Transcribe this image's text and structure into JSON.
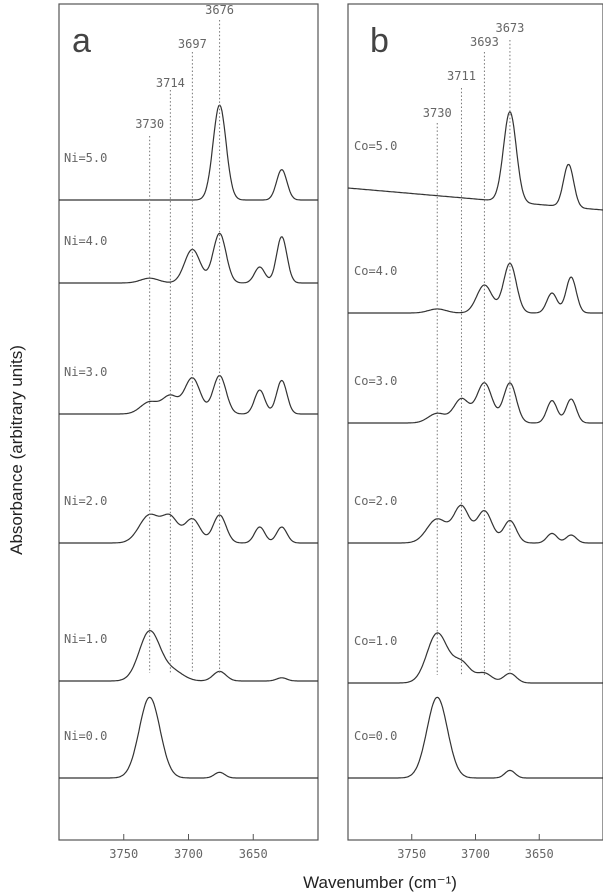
{
  "chart_data": [
    {
      "type": "line",
      "panel_label": "a",
      "xlim": [
        3800,
        3600
      ],
      "xticks": [
        3750,
        3700,
        3650
      ],
      "xlabel": "Wavenumber (cm⁻¹)",
      "ylabel": "Absorbance (arbitrary units)",
      "reference_lines": [
        3730,
        3714,
        3697,
        3676
      ],
      "peak_labels": [
        "3730",
        "3714",
        "3697",
        "3676"
      ],
      "series": [
        {
          "name": "Ni=5.0",
          "baseline": 0.0,
          "peaks": [
            [
              3730,
              0.0,
              7
            ],
            [
              3676,
              1.0,
              5
            ],
            [
              3628,
              0.32,
              4
            ]
          ]
        },
        {
          "name": "Ni=4.0",
          "baseline": 0.0,
          "peaks": [
            [
              3730,
              0.06,
              7
            ],
            [
              3697,
              0.42,
              6
            ],
            [
              3676,
              0.62,
              5
            ],
            [
              3645,
              0.2,
              4
            ],
            [
              3628,
              0.58,
              4
            ]
          ]
        },
        {
          "name": "Ni=3.0",
          "baseline": 0.0,
          "peaks": [
            [
              3730,
              0.15,
              7
            ],
            [
              3714,
              0.22,
              6
            ],
            [
              3697,
              0.45,
              6
            ],
            [
              3676,
              0.48,
              5
            ],
            [
              3645,
              0.3,
              4
            ],
            [
              3628,
              0.42,
              4
            ]
          ]
        },
        {
          "name": "Ni=2.0",
          "baseline": 0.0,
          "peaks": [
            [
              3730,
              0.35,
              8
            ],
            [
              3714,
              0.3,
              6
            ],
            [
              3697,
              0.3,
              6
            ],
            [
              3676,
              0.35,
              5
            ],
            [
              3645,
              0.2,
              4
            ],
            [
              3628,
              0.2,
              4
            ]
          ]
        },
        {
          "name": "Ni=1.0",
          "baseline": 0.0,
          "peaks": [
            [
              3730,
              0.62,
              8
            ],
            [
              3712,
              0.12,
              8
            ],
            [
              3676,
              0.12,
              5
            ],
            [
              3628,
              0.04,
              4
            ]
          ]
        },
        {
          "name": "Ni=0.0",
          "baseline": 0.0,
          "peaks": [
            [
              3730,
              0.85,
              8
            ],
            [
              3676,
              0.06,
              4
            ]
          ]
        }
      ]
    },
    {
      "type": "line",
      "panel_label": "b",
      "xlim": [
        3800,
        3600
      ],
      "xticks": [
        3750,
        3700,
        3650
      ],
      "xlabel": "Wavenumber (cm⁻¹)",
      "ylabel": "Absorbance (arbitrary units)",
      "reference_lines": [
        3730,
        3711,
        3693,
        3673
      ],
      "peak_labels": [
        "3730",
        "3711",
        "3693",
        "3673"
      ],
      "series": [
        {
          "name": "Co=5.0",
          "baseline": 0.0,
          "peaks": [
            [
              3730,
              0.0,
              7
            ],
            [
              3673,
              0.95,
              5
            ],
            [
              3627,
              0.45,
              4
            ]
          ]
        },
        {
          "name": "Co=4.0",
          "baseline": 0.0,
          "peaks": [
            [
              3730,
              0.05,
              7
            ],
            [
              3693,
              0.35,
              6
            ],
            [
              3673,
              0.62,
              5
            ],
            [
              3640,
              0.25,
              4
            ],
            [
              3625,
              0.45,
              4
            ]
          ]
        },
        {
          "name": "Co=3.0",
          "baseline": 0.0,
          "peaks": [
            [
              3730,
              0.12,
              7
            ],
            [
              3711,
              0.3,
              6
            ],
            [
              3693,
              0.5,
              6
            ],
            [
              3673,
              0.5,
              5
            ],
            [
              3640,
              0.28,
              4
            ],
            [
              3625,
              0.3,
              4
            ]
          ]
        },
        {
          "name": "Co=2.0",
          "baseline": 0.0,
          "peaks": [
            [
              3730,
              0.3,
              8
            ],
            [
              3711,
              0.45,
              6
            ],
            [
              3693,
              0.4,
              6
            ],
            [
              3673,
              0.28,
              5
            ],
            [
              3640,
              0.12,
              4
            ],
            [
              3625,
              0.1,
              4
            ]
          ]
        },
        {
          "name": "Co=1.0",
          "baseline": 0.0,
          "peaks": [
            [
              3730,
              0.62,
              8
            ],
            [
              3711,
              0.25,
              7
            ],
            [
              3693,
              0.12,
              6
            ],
            [
              3673,
              0.12,
              5
            ]
          ]
        },
        {
          "name": "Co=0.0",
          "baseline": 0.0,
          "peaks": [
            [
              3730,
              0.85,
              8
            ],
            [
              3673,
              0.08,
              4
            ]
          ]
        }
      ]
    }
  ]
}
